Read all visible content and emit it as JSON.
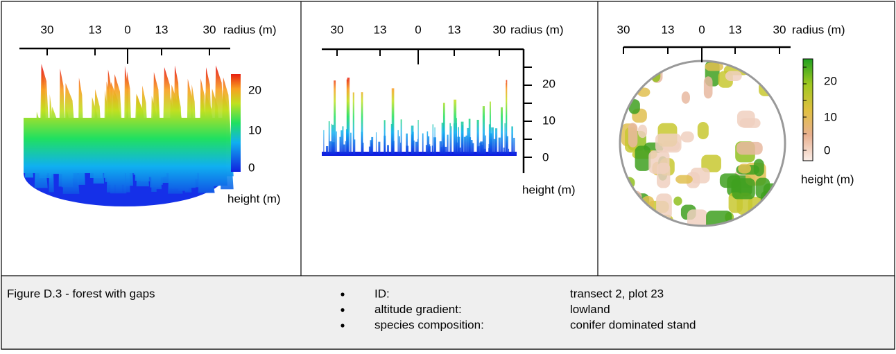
{
  "panels": [
    {
      "x_ticks": [
        30,
        13,
        0,
        13,
        30
      ],
      "x_label": "radius (m)",
      "y_ticks": [
        20,
        10,
        0
      ],
      "y_label": "height (m)"
    },
    {
      "x_ticks": [
        30,
        13,
        0,
        13,
        30
      ],
      "x_label": "radius (m)",
      "y_ticks": [
        20,
        10,
        0
      ],
      "y_label": "height (m)"
    },
    {
      "x_ticks": [
        30,
        13,
        0,
        13,
        30
      ],
      "x_label": "radius (m)",
      "y_ticks": [
        20,
        10,
        0
      ],
      "y_label": "height (m)"
    }
  ],
  "caption": {
    "title": "Figure D.3 - forest with gaps",
    "items": [
      {
        "key": "ID:",
        "value": "transect 2, plot 23"
      },
      {
        "key": "altitude gradient:",
        "value": "lowland"
      },
      {
        "key": "species composition:",
        "value": "conifer dominated stand"
      }
    ]
  }
}
